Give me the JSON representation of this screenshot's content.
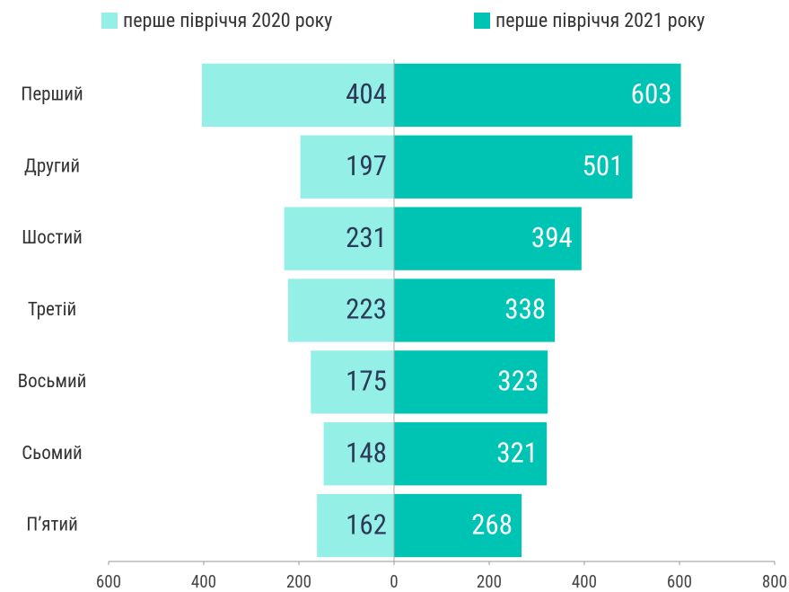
{
  "chart_data": {
    "type": "diverging_bar",
    "categories": [
      "Перший",
      "Другий",
      "Шостий",
      "Третій",
      "Восьмий",
      "Сьомий",
      "П’ятий"
    ],
    "series": [
      {
        "name": "перше півріччя 2020 року",
        "color": "#94efe6",
        "side": "left",
        "values": [
          404,
          197,
          231,
          223,
          175,
          148,
          162
        ]
      },
      {
        "name": "перше півріччя 2021 року",
        "color": "#00c4b3",
        "side": "right",
        "values": [
          603,
          501,
          394,
          338,
          323,
          321,
          268
        ]
      }
    ],
    "xlim": [
      -600,
      800
    ],
    "xticks": [
      {
        "value": -600,
        "label": "600"
      },
      {
        "value": -400,
        "label": "400"
      },
      {
        "value": -200,
        "label": "200"
      },
      0,
      200,
      400,
      600,
      800
    ],
    "grid": false,
    "legend": "top"
  }
}
